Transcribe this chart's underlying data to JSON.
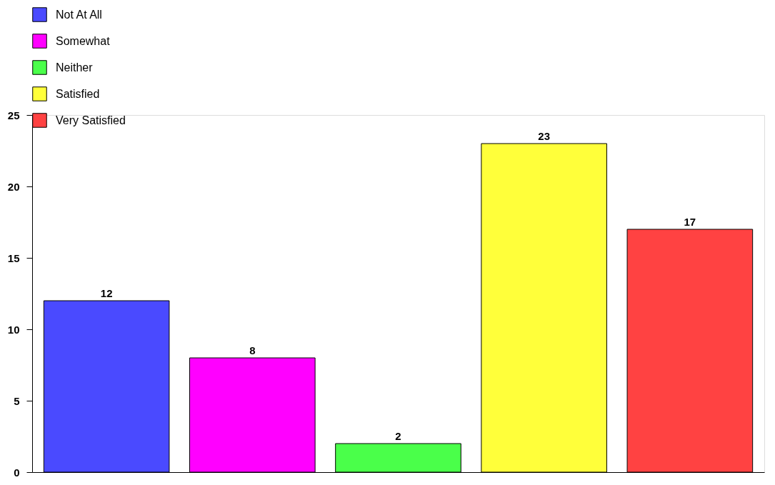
{
  "chart_data": {
    "type": "bar",
    "categories": [
      null,
      null,
      null,
      null,
      null
    ],
    "series": [
      {
        "name": "Not At All",
        "color": "#4a4aff",
        "values": [
          12,
          null,
          null,
          null,
          null
        ]
      },
      {
        "name": "Somewhat",
        "color": "#ff00ff",
        "values": [
          null,
          8,
          null,
          null,
          null
        ]
      },
      {
        "name": "Neither",
        "color": "#4aff4a",
        "values": [
          null,
          null,
          2,
          null,
          null
        ]
      },
      {
        "name": "Satisfied",
        "color": "#ffff3a",
        "values": [
          null,
          null,
          null,
          23,
          null
        ]
      },
      {
        "name": "Very Satisfied",
        "color": "#ff4242",
        "values": [
          null,
          null,
          null,
          null,
          17
        ]
      }
    ],
    "ylim": [
      0,
      25
    ],
    "yticks": [
      0,
      5,
      10,
      15,
      20,
      25
    ],
    "grid": false,
    "legend": "top",
    "data_labels": true,
    "tick_labels": "y"
  }
}
